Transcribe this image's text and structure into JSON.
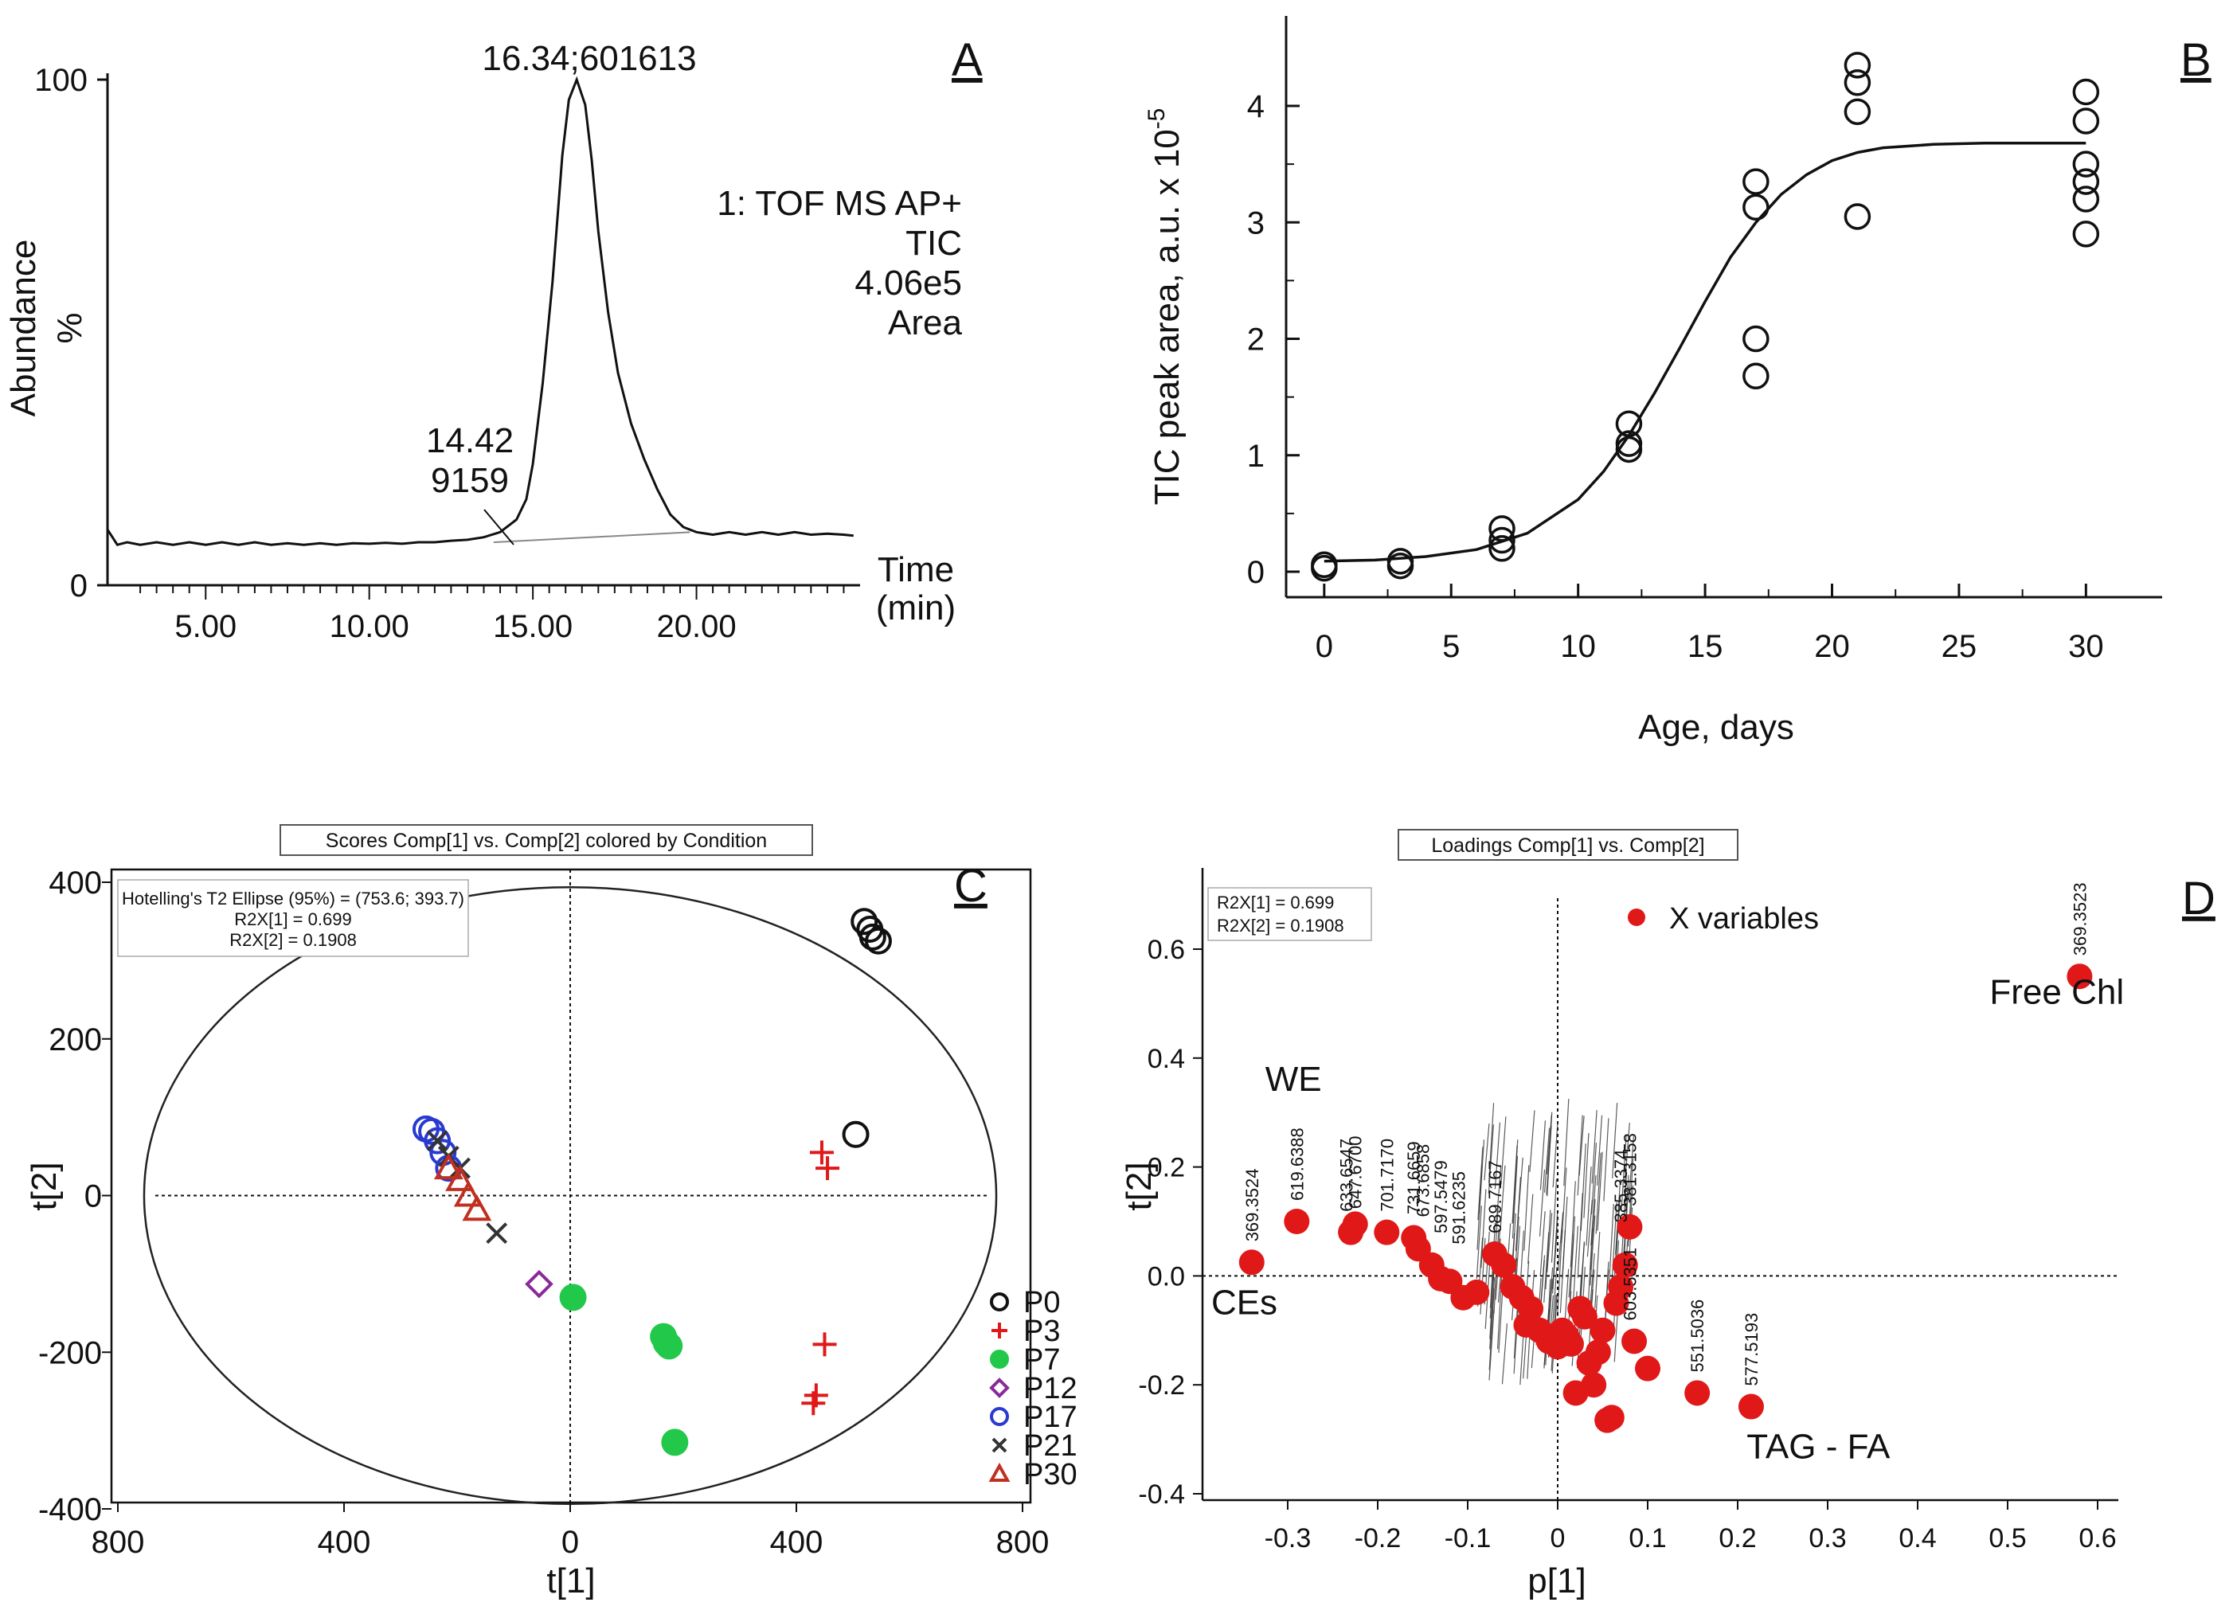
{
  "panels": {
    "A": "A",
    "B": "B",
    "C": "C",
    "D": "D"
  },
  "chart_data": [
    {
      "panel": "A",
      "type": "line",
      "ylabel": "Abundance",
      "yunit": "%",
      "xlabel_line1": "Time",
      "xlabel_line2": "(min)",
      "xlim": [
        2,
        25
      ],
      "ylim": [
        0,
        100
      ],
      "x_ticks": [
        "5.00",
        "10.00",
        "15.00",
        "20.00"
      ],
      "x_tick_values": [
        5,
        10,
        15,
        20
      ],
      "y_ticks": [
        "0",
        "100"
      ],
      "peak_label": "16.34;601613",
      "minor_peak_label_1": "14.42",
      "minor_peak_label_2": "9159",
      "info": [
        "1: TOF MS AP+",
        "TIC",
        "4.06e5",
        "Area"
      ],
      "trace": {
        "x": [
          2.0,
          2.3,
          2.6,
          3.0,
          3.5,
          4.0,
          4.5,
          5.0,
          5.5,
          6.0,
          6.5,
          7.0,
          7.5,
          8.0,
          8.5,
          9.0,
          9.5,
          10.0,
          10.5,
          11.0,
          11.5,
          12.0,
          12.5,
          13.0,
          13.5,
          14.0,
          14.3,
          14.5,
          14.8,
          15.0,
          15.3,
          15.6,
          15.9,
          16.1,
          16.34,
          16.6,
          16.8,
          17.0,
          17.3,
          17.6,
          18.0,
          18.4,
          18.8,
          19.2,
          19.6,
          20.0,
          20.5,
          21.0,
          21.5,
          22.0,
          22.5,
          23.0,
          23.5,
          24.0,
          24.5,
          24.8
        ],
        "y": [
          11,
          8,
          8.5,
          8,
          8.5,
          8,
          8.5,
          8,
          8.5,
          8,
          8.5,
          8,
          8.3,
          8,
          8.3,
          8,
          8.3,
          8.2,
          8.4,
          8.2,
          8.5,
          8.5,
          8.8,
          9,
          9.5,
          10.5,
          12,
          13,
          17,
          24,
          40,
          60,
          85,
          96,
          100,
          95,
          84,
          70,
          54,
          42,
          32,
          25,
          19,
          14,
          11.5,
          10.5,
          10,
          10.5,
          10,
          10.5,
          10,
          10.5,
          10,
          10.2,
          10,
          9.8
        ]
      },
      "baseline": {
        "x": [
          13.8,
          19.8
        ],
        "y": [
          8.5,
          10.5
        ]
      }
    },
    {
      "panel": "B",
      "type": "scatter",
      "ylabel": "TIC peak area, a.u. x 10",
      "ylabel_sup": "-5",
      "xlabel": "Age, days",
      "xlim": [
        -1.5,
        33
      ],
      "ylim": [
        -0.2,
        4.8
      ],
      "x_ticks": [
        "0",
        "5",
        "10",
        "15",
        "20",
        "25",
        "30"
      ],
      "x_tick_values": [
        0,
        5,
        10,
        15,
        20,
        25,
        30
      ],
      "y_ticks": [
        "0",
        "1",
        "2",
        "3",
        "4"
      ],
      "y_tick_values": [
        0,
        1,
        2,
        3,
        4
      ],
      "points": {
        "x": [
          0,
          0,
          3,
          3,
          7,
          7,
          7,
          12,
          12,
          12,
          17,
          17,
          17,
          17,
          21,
          21,
          21,
          21,
          30,
          30,
          30,
          30,
          30,
          30
        ],
        "y": [
          0.03,
          0.06,
          0.05,
          0.09,
          0.2,
          0.27,
          0.37,
          1.05,
          1.1,
          1.27,
          1.68,
          2.0,
          3.13,
          3.35,
          3.05,
          3.95,
          4.2,
          4.35,
          2.9,
          3.2,
          3.35,
          3.5,
          3.87,
          4.12
        ]
      },
      "fit": {
        "x": [
          0,
          2,
          4,
          6,
          8,
          10,
          11,
          12,
          13,
          14,
          15,
          16,
          17,
          18,
          19,
          20,
          21,
          22,
          24,
          26,
          28,
          30
        ],
        "y": [
          0.09,
          0.1,
          0.13,
          0.19,
          0.33,
          0.62,
          0.86,
          1.17,
          1.53,
          1.92,
          2.32,
          2.7,
          3.0,
          3.24,
          3.41,
          3.53,
          3.6,
          3.64,
          3.67,
          3.68,
          3.68,
          3.68
        ]
      }
    },
    {
      "panel": "C",
      "type": "scatter",
      "title": "Scores Comp[1] vs. Comp[2] colored by Condition",
      "info": [
        "Hotelling's T2 Ellipse (95%) = (753.6; 393.7)",
        "R2X[1] = 0.699",
        "R2X[2] = 0.1908"
      ],
      "xlabel": "t[1]",
      "ylabel": "t[2]",
      "xlim": [
        -850,
        850
      ],
      "ylim": [
        -420,
        420
      ],
      "x_ticks": [
        "800",
        "400",
        "0",
        "400",
        "800"
      ],
      "x_tick_values": [
        -800,
        -400,
        0,
        400,
        800
      ],
      "y_ticks": [
        "400",
        "200",
        "0",
        "-200",
        "-400"
      ],
      "y_tick_values": [
        400,
        200,
        0,
        -200,
        -400
      ],
      "ellipse": {
        "a": 753.6,
        "b": 393.7
      },
      "series": [
        {
          "name": "P0",
          "color": "#111111",
          "marker": "circle-open",
          "x": [
            520,
            530,
            545,
            535,
            505
          ],
          "y": [
            350,
            340,
            325,
            330,
            78
          ]
        },
        {
          "name": "P3",
          "color": "#e01818",
          "marker": "plus",
          "x": [
            445,
            455,
            450,
            435,
            430
          ],
          "y": [
            55,
            35,
            -190,
            -255,
            -265
          ]
        },
        {
          "name": "P7",
          "color": "#22c84a",
          "marker": "circle-filled",
          "x": [
            5,
            165,
            170,
            175,
            185
          ],
          "y": [
            -130,
            -180,
            -188,
            -192,
            -315
          ]
        },
        {
          "name": "P12",
          "color": "#8a2a9a",
          "marker": "diamond-open",
          "x": [
            -55
          ],
          "y": [
            -113
          ]
        },
        {
          "name": "P17",
          "color": "#2a3ad0",
          "marker": "circle-open",
          "x": [
            -255,
            -245,
            -235,
            -225,
            -215
          ],
          "y": [
            85,
            82,
            70,
            55,
            35
          ]
        },
        {
          "name": "P21",
          "color": "#333333",
          "marker": "x",
          "x": [
            -235,
            -215,
            -195,
            -130
          ],
          "y": [
            70,
            50,
            35,
            -48
          ]
        },
        {
          "name": "P30",
          "color": "#c03020",
          "marker": "triangle-open",
          "x": [
            -215,
            -195,
            -180,
            -165
          ],
          "y": [
            35,
            20,
            0,
            -18
          ]
        }
      ]
    },
    {
      "panel": "D",
      "type": "scatter",
      "title": "Loadings Comp[1] vs. Comp[2]",
      "info": [
        "R2X[1] = 0.699",
        "R2X[2] = 0.1908"
      ],
      "legend_label": "X variables",
      "xlabel": "p[1]",
      "ylabel": "t[2]",
      "xlim": [
        -0.37,
        0.63
      ],
      "ylim": [
        -0.41,
        0.76
      ],
      "x_ticks": [
        "-0.3",
        "-0.2",
        "-0.1",
        "0",
        "0.1",
        "0.2",
        "0.3",
        "0.4",
        "0.5",
        "0.6"
      ],
      "x_tick_values": [
        -0.3,
        -0.2,
        -0.1,
        0,
        0.1,
        0.2,
        0.3,
        0.4,
        0.5,
        0.6
      ],
      "y_ticks": [
        "0.6",
        "0.4",
        "0.2",
        "0.0",
        "-0.2",
        "-0.4"
      ],
      "y_tick_values": [
        0.6,
        0.4,
        0.2,
        0.0,
        -0.2,
        -0.4
      ],
      "annotations": [
        {
          "text": "Free Chl",
          "x": 0.48,
          "y": 0.5
        },
        {
          "text": "WE",
          "x": -0.325,
          "y": 0.34
        },
        {
          "text": "CEs",
          "x": -0.385,
          "y": -0.07
        },
        {
          "text": "TAG - FA",
          "x": 0.21,
          "y": -0.335
        }
      ],
      "point_labels": [
        {
          "text": "369.3523",
          "x": 0.58,
          "y": 0.55
        },
        {
          "text": "369.3524",
          "x": -0.34,
          "y": 0.025
        },
        {
          "text": "619.6388",
          "x": -0.29,
          "y": 0.1
        },
        {
          "text": "647.6700",
          "x": -0.225,
          "y": 0.085
        },
        {
          "text": "633.6547",
          "x": -0.235,
          "y": 0.08
        },
        {
          "text": "701.7170",
          "x": -0.19,
          "y": 0.08
        },
        {
          "text": "731.6659",
          "x": -0.16,
          "y": 0.075
        },
        {
          "text": "673.6858",
          "x": -0.15,
          "y": 0.07
        },
        {
          "text": "597.5479",
          "x": -0.13,
          "y": 0.04
        },
        {
          "text": "591.6235",
          "x": -0.11,
          "y": 0.02
        },
        {
          "text": "689.7167",
          "x": -0.07,
          "y": 0.04
        },
        {
          "text": "381.3158",
          "x": 0.08,
          "y": 0.09
        },
        {
          "text": "385.3374",
          "x": 0.07,
          "y": 0.06
        },
        {
          "text": "603.5351",
          "x": 0.08,
          "y": -0.12
        },
        {
          "text": "551.5036",
          "x": 0.155,
          "y": -0.215
        },
        {
          "text": "577.5193",
          "x": 0.215,
          "y": -0.24
        }
      ],
      "points": {
        "x": [
          0.58,
          -0.34,
          -0.29,
          -0.225,
          -0.23,
          -0.19,
          -0.16,
          -0.155,
          -0.14,
          -0.12,
          -0.105,
          -0.09,
          -0.13,
          -0.07,
          -0.06,
          -0.05,
          -0.04,
          -0.035,
          -0.03,
          -0.02,
          -0.01,
          0.0,
          0.005,
          0.01,
          0.015,
          0.02,
          0.025,
          0.03,
          0.035,
          0.04,
          0.045,
          0.05,
          0.055,
          0.06,
          0.065,
          0.07,
          0.075,
          0.08,
          0.085,
          0.1,
          0.155,
          0.215
        ],
        "y": [
          0.55,
          0.025,
          0.1,
          0.095,
          0.08,
          0.08,
          0.07,
          0.05,
          0.02,
          -0.01,
          -0.04,
          -0.03,
          -0.005,
          0.04,
          0.02,
          -0.02,
          -0.04,
          -0.09,
          -0.06,
          -0.1,
          -0.12,
          -0.13,
          -0.1,
          -0.11,
          -0.125,
          -0.215,
          -0.06,
          -0.075,
          -0.16,
          -0.2,
          -0.14,
          -0.1,
          -0.265,
          -0.26,
          -0.05,
          -0.02,
          0.02,
          0.09,
          -0.12,
          -0.17,
          -0.215,
          -0.24
        ]
      }
    }
  ]
}
